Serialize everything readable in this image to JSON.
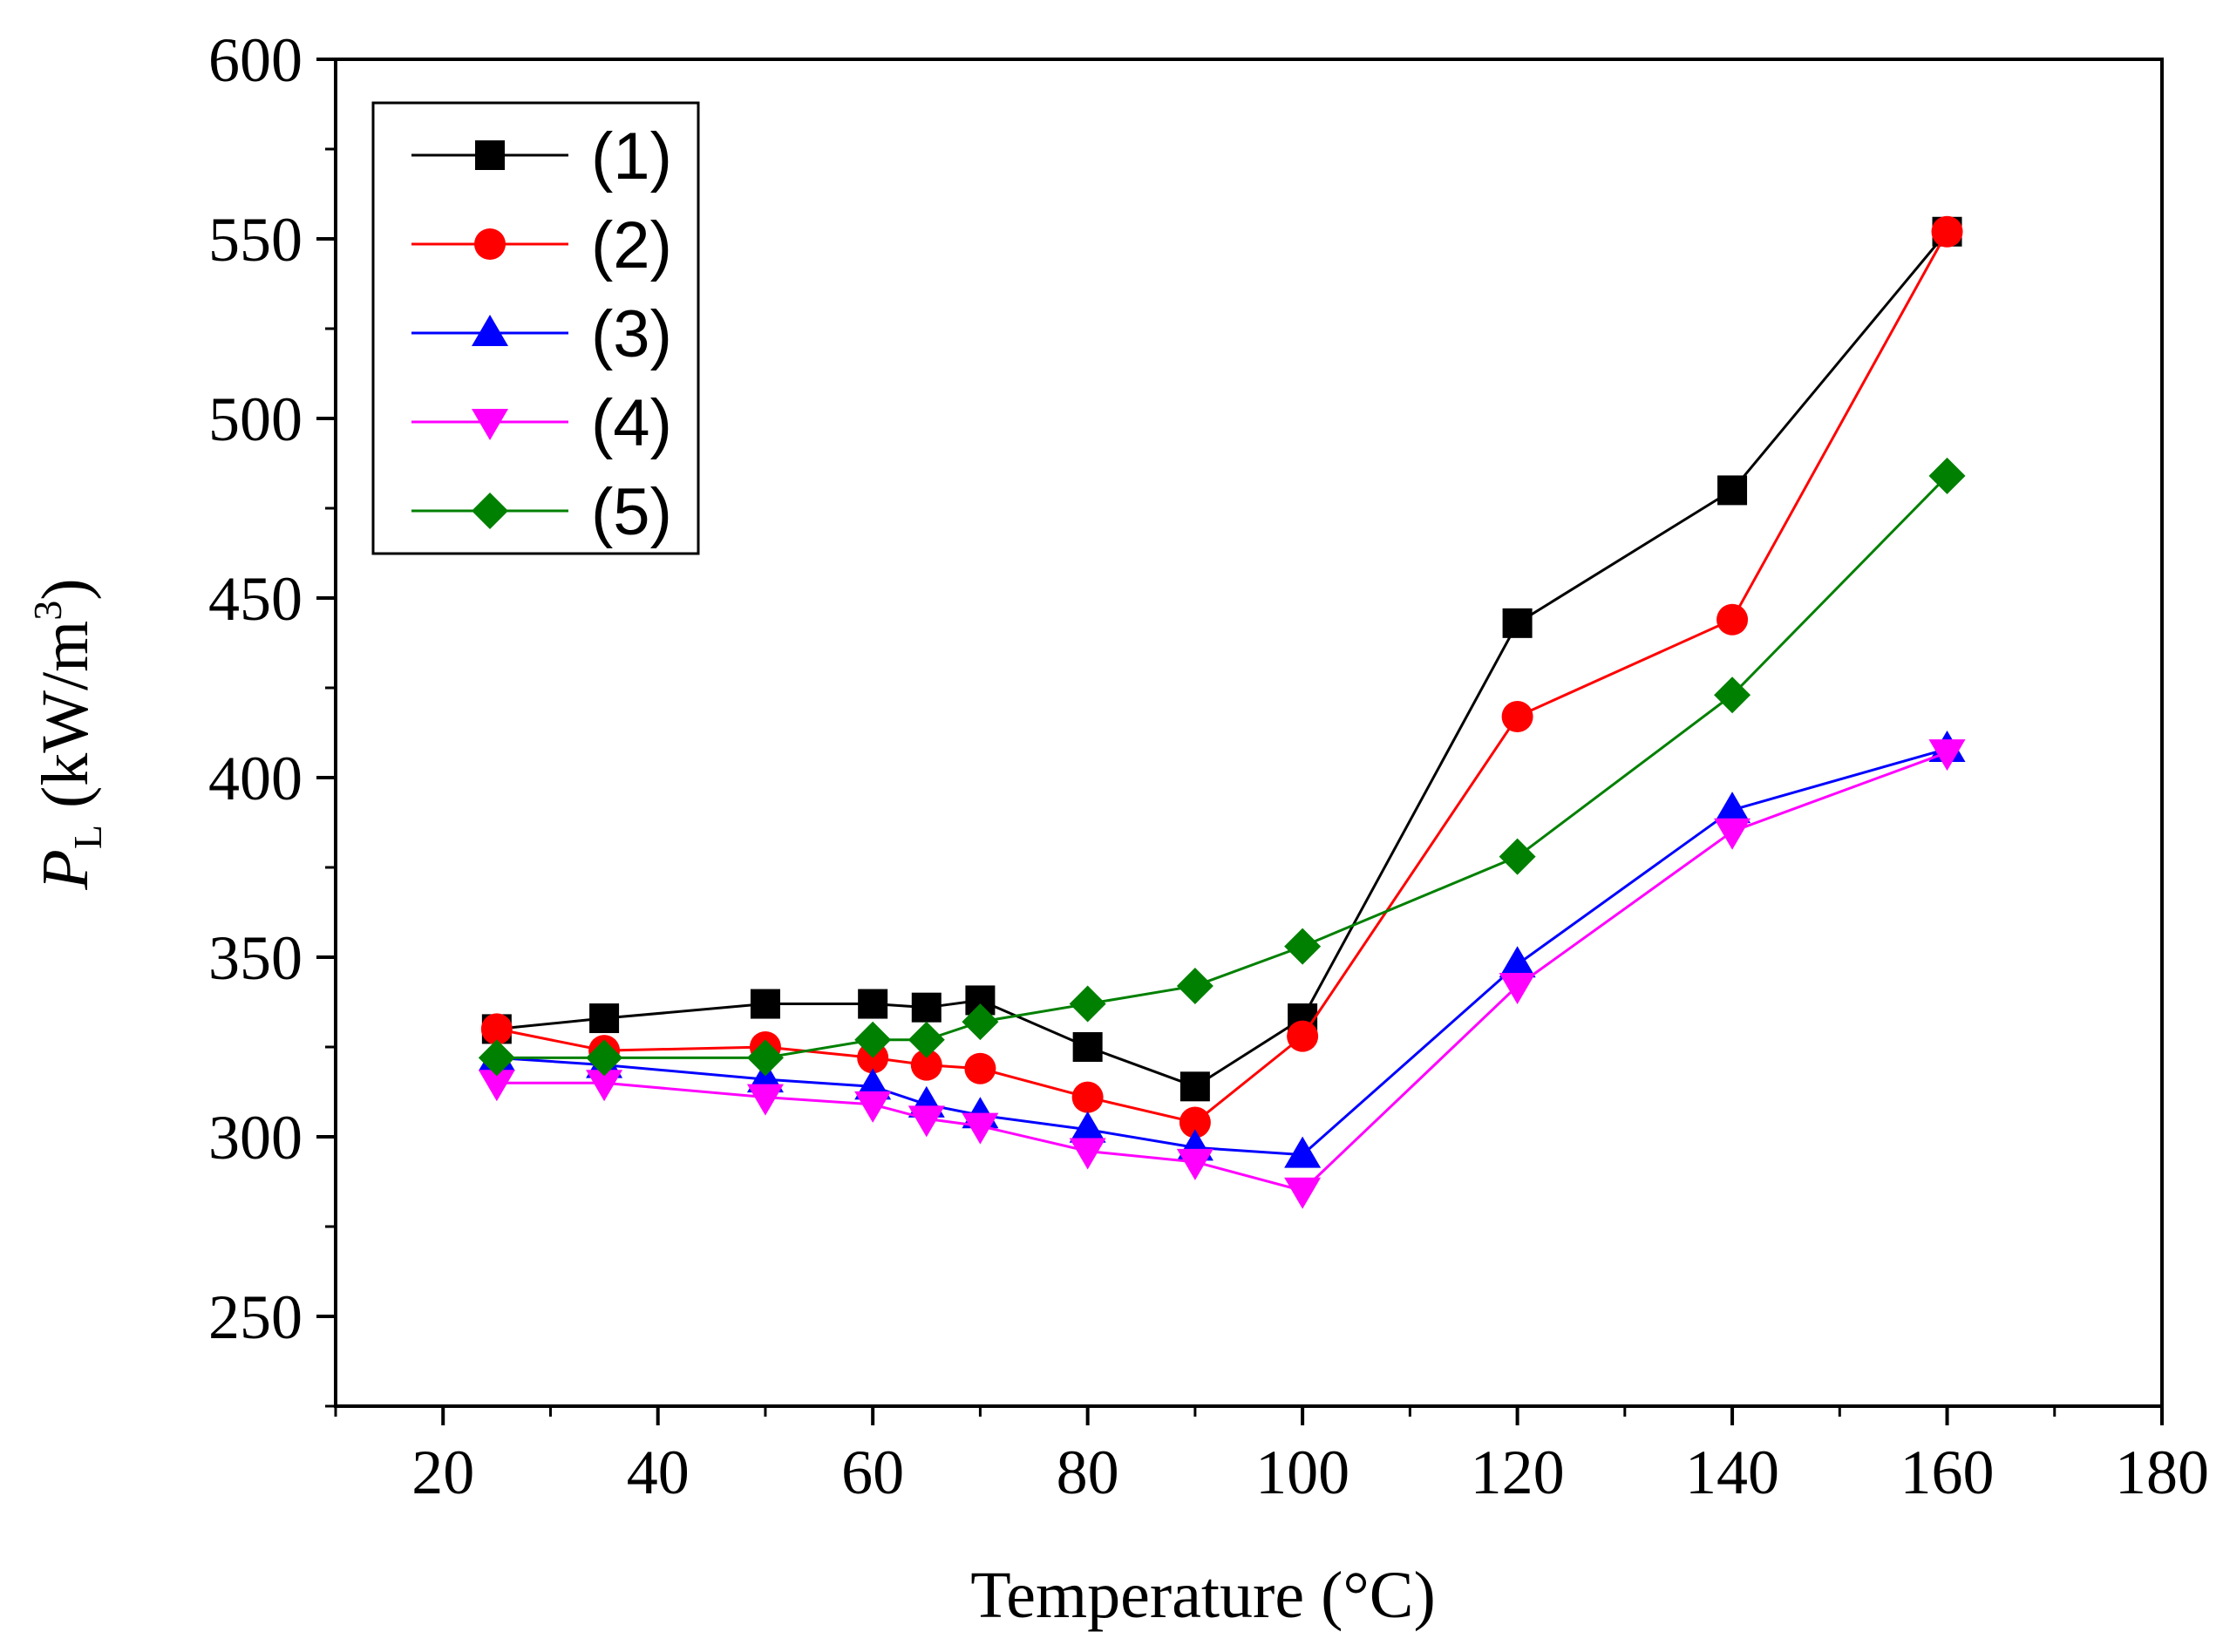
{
  "chart_data": {
    "type": "line",
    "title": "",
    "xlabel": "Temperature  (°C)",
    "ylabel_symbol": "P",
    "ylabel_subscript": "L",
    "ylabel_unit_prefix": " (kW/m",
    "ylabel_unit_power": "3",
    "ylabel_unit_suffix": ")",
    "xlim": [
      10,
      180
    ],
    "ylim": [
      225,
      600
    ],
    "xticks": [
      20,
      40,
      60,
      80,
      100,
      120,
      140,
      160,
      180
    ],
    "yticks": [
      250,
      300,
      350,
      400,
      450,
      500,
      550,
      600
    ],
    "legend_position": "top-left",
    "x": [
      25,
      35,
      50,
      60,
      65,
      70,
      80,
      90,
      100,
      120,
      140,
      160
    ],
    "series": [
      {
        "name": "(1)",
        "color": "#000000",
        "marker": "square",
        "values": [
          330,
          333,
          337,
          337,
          336,
          338,
          325,
          314,
          333,
          443,
          480,
          552
        ]
      },
      {
        "name": "(2)",
        "color": "#ff0000",
        "marker": "circle",
        "values": [
          330,
          324,
          325,
          322,
          320,
          319,
          311,
          304,
          328,
          417,
          444,
          552
        ]
      },
      {
        "name": "(3)",
        "color": "#0000ff",
        "marker": "triangle-up",
        "values": [
          322,
          320,
          316,
          314,
          309,
          306,
          302,
          297,
          295,
          348,
          391,
          408
        ]
      },
      {
        "name": "(4)",
        "color": "#ff00ff",
        "marker": "triangle-down",
        "values": [
          315,
          315,
          311,
          309,
          305,
          303,
          296,
          293,
          285,
          342,
          385,
          407
        ]
      },
      {
        "name": "(5)",
        "color": "#008000",
        "marker": "diamond",
        "values": [
          322,
          322,
          322,
          327,
          327,
          332,
          337,
          342,
          353,
          378,
          423,
          484
        ]
      }
    ]
  }
}
